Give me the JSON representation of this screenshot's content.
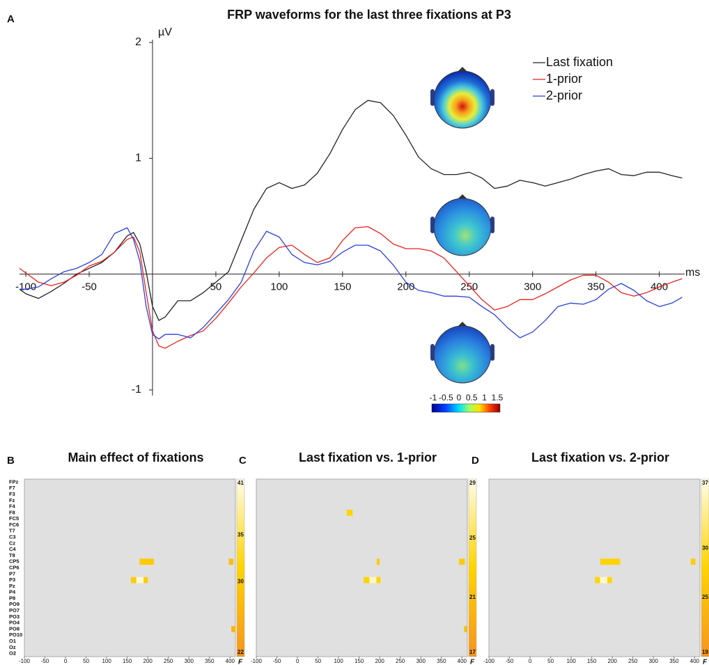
{
  "chart_data": [
    {
      "type": "line",
      "label": "A",
      "title": "FRP waveforms for the last three fixations at P3",
      "xlabel": "ms",
      "ylabel": "µV",
      "x": [
        -105,
        -100,
        -90,
        -80,
        -70,
        -60,
        -50,
        -40,
        -30,
        -20,
        -15,
        -10,
        -5,
        0,
        5,
        10,
        20,
        30,
        40,
        50,
        60,
        70,
        80,
        90,
        100,
        110,
        120,
        130,
        140,
        150,
        160,
        170,
        180,
        190,
        200,
        210,
        220,
        230,
        240,
        250,
        260,
        270,
        280,
        290,
        300,
        310,
        320,
        330,
        340,
        350,
        360,
        370,
        380,
        390,
        400,
        410,
        418
      ],
      "series": [
        {
          "name": "Last fixation",
          "color": "#222222",
          "values": [
            -0.13,
            -0.17,
            -0.21,
            -0.15,
            -0.08,
            0,
            0.05,
            0.1,
            0.19,
            0.33,
            0.36,
            0.26,
            0.02,
            -0.28,
            -0.4,
            -0.37,
            -0.23,
            -0.23,
            -0.16,
            -0.07,
            0.02,
            0.29,
            0.56,
            0.74,
            0.79,
            0.74,
            0.77,
            0.87,
            1.04,
            1.25,
            1.42,
            1.5,
            1.48,
            1.37,
            1.2,
            1.01,
            0.91,
            0.86,
            0.86,
            0.88,
            0.83,
            0.74,
            0.76,
            0.81,
            0.79,
            0.76,
            0.79,
            0.82,
            0.86,
            0.89,
            0.91,
            0.86,
            0.85,
            0.88,
            0.88,
            0.85,
            0.83
          ]
        },
        {
          "name": "1-prior",
          "color": "#e8211d",
          "values": [
            0.05,
            0.01,
            -0.07,
            -0.1,
            -0.07,
            -0.01,
            0.07,
            0.11,
            0.19,
            0.3,
            0.32,
            0.19,
            -0.16,
            -0.49,
            -0.62,
            -0.64,
            -0.58,
            -0.53,
            -0.49,
            -0.38,
            -0.25,
            -0.11,
            0.01,
            0.14,
            0.23,
            0.25,
            0.17,
            0.1,
            0.14,
            0.29,
            0.4,
            0.41,
            0.35,
            0.26,
            0.22,
            0.22,
            0.2,
            0.14,
            0.02,
            -0.1,
            -0.22,
            -0.31,
            -0.28,
            -0.22,
            -0.22,
            -0.17,
            -0.11,
            -0.05,
            -0.01,
            -0.01,
            -0.07,
            -0.16,
            -0.19,
            -0.16,
            -0.11,
            -0.07,
            -0.04
          ]
        },
        {
          "name": "2-prior",
          "color": "#2b3fd6",
          "values": [
            -0.13,
            -0.13,
            -0.11,
            -0.04,
            0.02,
            0.05,
            0.1,
            0.17,
            0.35,
            0.4,
            0.3,
            0.11,
            -0.28,
            -0.52,
            -0.56,
            -0.52,
            -0.52,
            -0.55,
            -0.46,
            -0.34,
            -0.22,
            -0.07,
            0.2,
            0.37,
            0.32,
            0.17,
            0.1,
            0.08,
            0.11,
            0.19,
            0.25,
            0.25,
            0.2,
            0.08,
            -0.07,
            -0.14,
            -0.16,
            -0.19,
            -0.19,
            -0.2,
            -0.28,
            -0.35,
            -0.46,
            -0.55,
            -0.5,
            -0.4,
            -0.28,
            -0.25,
            -0.26,
            -0.22,
            -0.13,
            -0.08,
            -0.14,
            -0.23,
            -0.28,
            -0.25,
            -0.2
          ]
        }
      ],
      "xlim": [
        -105,
        420
      ],
      "ylim": [
        -1,
        2
      ],
      "xticks": [
        -100,
        -50,
        50,
        100,
        150,
        200,
        250,
        300,
        350,
        400
      ],
      "yticks": [
        -1,
        1,
        2
      ],
      "legend": "upper right",
      "grid": false,
      "colorbar": {
        "ticks": [
          -1,
          -0.5,
          0,
          0.5,
          1,
          1.5
        ]
      }
    },
    {
      "type": "heatmap",
      "label": "B",
      "title": "Main effect of fixations",
      "categories": [
        "FPz",
        "F7",
        "F3",
        "Fz",
        "F4",
        "F8",
        "FC5",
        "FC6",
        "T7",
        "C3",
        "Cz",
        "C4",
        "T8",
        "CP5",
        "CP6",
        "P7",
        "P3",
        "Pz",
        "P4",
        "P8",
        "PO9",
        "PO7",
        "PO3",
        "PO4",
        "PO8",
        "PO10",
        "O1",
        "Oz",
        "O2"
      ],
      "xlim": [
        -100,
        413
      ],
      "xticks": [
        -100,
        -50,
        0,
        50,
        100,
        150,
        200,
        250,
        300,
        350,
        400
      ],
      "colormap": [
        "#f7941d",
        "#ffd400",
        "#fffde8"
      ],
      "cells": [
        {
          "channel": "CP5",
          "x": [
            180,
            215
          ],
          "value": 30
        },
        {
          "channel": "CP5",
          "x": [
            397,
            408
          ],
          "value": 28
        },
        {
          "channel": "P3",
          "x": [
            159,
            172
          ],
          "value": 30
        },
        {
          "channel": "P3",
          "x": [
            172,
            190
          ],
          "value": 40
        },
        {
          "channel": "P3",
          "x": [
            190,
            200
          ],
          "value": 30
        },
        {
          "channel": "PO8",
          "x": [
            403,
            413
          ],
          "value": 27
        }
      ],
      "colorbar": {
        "label": "F",
        "lim": [
          22,
          41
        ],
        "ticks": [
          41,
          35,
          30,
          22
        ]
      }
    },
    {
      "type": "heatmap",
      "label": "C",
      "title": "Last fixation vs. 1-prior",
      "xlim": [
        -100,
        413
      ],
      "xticks": [
        -100,
        -50,
        0,
        50,
        100,
        150,
        200,
        250,
        300,
        350,
        400
      ],
      "colormap": [
        "#f7941d",
        "#ffd400",
        "#fffde8"
      ],
      "cells": [
        {
          "channel": "F8",
          "x": [
            120,
            134
          ],
          "value": 23
        },
        {
          "channel": "CP5",
          "x": [
            193,
            200
          ],
          "value": 22
        },
        {
          "channel": "CP5",
          "x": [
            393,
            407
          ],
          "value": 22
        },
        {
          "channel": "P3",
          "x": [
            161,
            175
          ],
          "value": 23
        },
        {
          "channel": "P3",
          "x": [
            175,
            192
          ],
          "value": 28
        },
        {
          "channel": "P3",
          "x": [
            192,
            202
          ],
          "value": 23
        },
        {
          "channel": "PO8",
          "x": [
            405,
            412
          ],
          "value": 21
        }
      ],
      "colorbar": {
        "label": "F",
        "lim": [
          17,
          29
        ],
        "ticks": [
          29,
          25,
          21,
          17
        ]
      }
    },
    {
      "type": "heatmap",
      "label": "D",
      "title": "Last fixation vs. 2-prior",
      "xlim": [
        -100,
        413
      ],
      "xticks": [
        -100,
        -50,
        0,
        50,
        100,
        150,
        200,
        250,
        300,
        350,
        400
      ],
      "colormap": [
        "#f7941d",
        "#ffd400",
        "#fffde8"
      ],
      "cells": [
        {
          "channel": "CP5",
          "x": [
            171,
            219
          ],
          "value": 28
        },
        {
          "channel": "CP5",
          "x": [
            391,
            402
          ],
          "value": 27
        },
        {
          "channel": "P3",
          "x": [
            158,
            170
          ],
          "value": 28
        },
        {
          "channel": "P3",
          "x": [
            170,
            188
          ],
          "value": 36
        },
        {
          "channel": "P3",
          "x": [
            188,
            199
          ],
          "value": 28
        }
      ],
      "colorbar": {
        "label": "F",
        "lim": [
          19,
          37
        ],
        "ticks": [
          37,
          30,
          25,
          19
        ]
      }
    }
  ]
}
